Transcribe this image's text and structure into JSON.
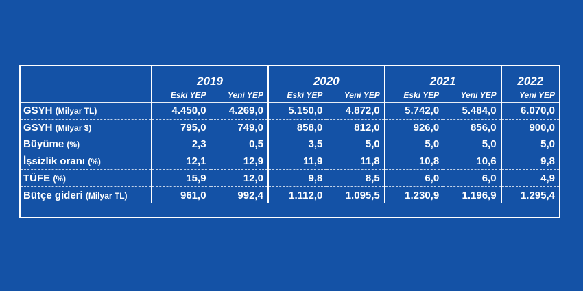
{
  "years": [
    "2019",
    "2020",
    "2021",
    "2022"
  ],
  "subheaders": [
    "Eski YEP",
    "Yeni YEP",
    "Eski YEP",
    "Yeni YEP",
    "Eski YEP",
    "Yeni YEP",
    "Yeni YEP"
  ],
  "rows": [
    {
      "name": "GSYH",
      "unit": "(Milyar TL)",
      "values": [
        "4.450,0",
        "4.269,0",
        "5.150,0",
        "4.872,0",
        "5.742,0",
        "5.484,0",
        "6.070,0"
      ]
    },
    {
      "name": "GSYH",
      "unit": "(Milyar $)",
      "values": [
        "795,0",
        "749,0",
        "858,0",
        "812,0",
        "926,0",
        "856,0",
        "900,0"
      ]
    },
    {
      "name": "Büyüme",
      "unit": "(%)",
      "values": [
        "2,3",
        "0,5",
        "3,5",
        "5,0",
        "5,0",
        "5,0",
        "5,0"
      ]
    },
    {
      "name": "İşsizlik oranı",
      "unit": "(%)",
      "values": [
        "12,1",
        "12,9",
        "11,9",
        "11,8",
        "10,8",
        "10,6",
        "9,8"
      ]
    },
    {
      "name": "TÜFE",
      "unit": "(%)",
      "values": [
        "15,9",
        "12,0",
        "9,8",
        "8,5",
        "6,0",
        "6,0",
        "4,9"
      ]
    },
    {
      "name": "Bütçe gideri",
      "unit": "(Milyar TL)",
      "values": [
        "961,0",
        "992,4",
        "1.112,0",
        "1.095,5",
        "1.230,9",
        "1.196,9",
        "1.295,4"
      ]
    }
  ],
  "chart_data": {
    "type": "table",
    "columns": [
      "2019 Eski YEP",
      "2019 Yeni YEP",
      "2020 Eski YEP",
      "2020 Yeni YEP",
      "2021 Eski YEP",
      "2021 Yeni YEP",
      "2022 Yeni YEP"
    ],
    "rows": [
      {
        "label": "GSYH (Milyar TL)",
        "values": [
          4450.0,
          4269.0,
          5150.0,
          4872.0,
          5742.0,
          5484.0,
          6070.0
        ]
      },
      {
        "label": "GSYH (Milyar $)",
        "values": [
          795.0,
          749.0,
          858.0,
          812.0,
          926.0,
          856.0,
          900.0
        ]
      },
      {
        "label": "Büyüme (%)",
        "values": [
          2.3,
          0.5,
          3.5,
          5.0,
          5.0,
          5.0,
          5.0
        ]
      },
      {
        "label": "İşsizlik oranı (%)",
        "values": [
          12.1,
          12.9,
          11.9,
          11.8,
          10.8,
          10.6,
          9.8
        ]
      },
      {
        "label": "TÜFE (%)",
        "values": [
          15.9,
          12.0,
          9.8,
          8.5,
          6.0,
          6.0,
          4.9
        ]
      },
      {
        "label": "Bütçe gideri (Milyar TL)",
        "values": [
          961.0,
          992.4,
          1112.0,
          1095.5,
          1230.9,
          1196.9,
          1295.4
        ]
      }
    ]
  },
  "colors": {
    "background": "#1452a6",
    "text": "#ffffff",
    "lines": "#ffffff"
  }
}
